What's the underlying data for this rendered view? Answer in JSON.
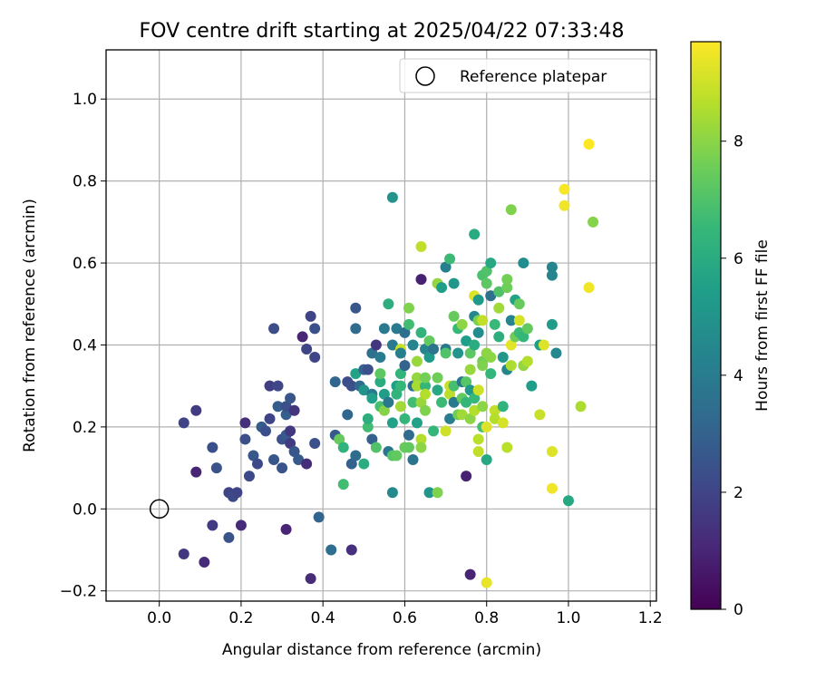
{
  "chart_data": {
    "type": "scatter",
    "title": "FOV centre drift starting at 2025/04/22 07:33:48",
    "xlabel": "Angular distance from reference (arcmin)",
    "ylabel": "Rotation from reference (arcmin)",
    "xlim": [
      -0.13,
      1.215
    ],
    "ylim": [
      -0.225,
      1.12
    ],
    "x_ticks": [
      "0.0",
      "0.2",
      "0.4",
      "0.6",
      "0.8",
      "1.0",
      "1.2"
    ],
    "y_ticks": [
      "−0.2",
      "0.0",
      "0.2",
      "0.4",
      "0.6",
      "0.8",
      "1.0"
    ],
    "grid": true,
    "legend_position": "top-right",
    "legend": {
      "label": "Reference platepar",
      "marker": "open-circle"
    },
    "reference_point": {
      "x": 0.0,
      "y": 0.0
    },
    "colorbar": {
      "label": "Hours from first FF file",
      "colormap": "viridis",
      "range": [
        0,
        9.7
      ],
      "ticks": [
        "0",
        "2",
        "4",
        "6",
        "8"
      ]
    },
    "points": [
      {
        "x": 0.06,
        "y": 0.21,
        "c": 2.0
      },
      {
        "x": 0.09,
        "y": 0.24,
        "c": 1.7
      },
      {
        "x": 0.09,
        "y": 0.09,
        "c": 1.0
      },
      {
        "x": 0.06,
        "y": -0.11,
        "c": 1.6
      },
      {
        "x": 0.11,
        "y": -0.13,
        "c": 1.2
      },
      {
        "x": 0.13,
        "y": -0.04,
        "c": 1.7
      },
      {
        "x": 0.13,
        "y": 0.15,
        "c": 2.4
      },
      {
        "x": 0.14,
        "y": 0.1,
        "c": 2.5
      },
      {
        "x": 0.17,
        "y": -0.07,
        "c": 2.5
      },
      {
        "x": 0.17,
        "y": 0.04,
        "c": 2.0
      },
      {
        "x": 0.18,
        "y": 0.03,
        "c": 2.2
      },
      {
        "x": 0.19,
        "y": 0.04,
        "c": 2.0
      },
      {
        "x": 0.2,
        "y": -0.04,
        "c": 1.2
      },
      {
        "x": 0.21,
        "y": 0.21,
        "c": 1.3
      },
      {
        "x": 0.21,
        "y": 0.17,
        "c": 2.4
      },
      {
        "x": 0.22,
        "y": 0.08,
        "c": 2.2
      },
      {
        "x": 0.23,
        "y": 0.13,
        "c": 2.6
      },
      {
        "x": 0.24,
        "y": 0.11,
        "c": 2.2
      },
      {
        "x": 0.25,
        "y": 0.2,
        "c": 2.8
      },
      {
        "x": 0.26,
        "y": 0.19,
        "c": 2.4
      },
      {
        "x": 0.27,
        "y": 0.22,
        "c": 2.0
      },
      {
        "x": 0.27,
        "y": 0.3,
        "c": 1.8
      },
      {
        "x": 0.28,
        "y": 0.12,
        "c": 2.6
      },
      {
        "x": 0.28,
        "y": 0.44,
        "c": 2.3
      },
      {
        "x": 0.29,
        "y": 0.3,
        "c": 2.1
      },
      {
        "x": 0.29,
        "y": 0.25,
        "c": 2.9
      },
      {
        "x": 0.3,
        "y": 0.17,
        "c": 2.5
      },
      {
        "x": 0.3,
        "y": 0.1,
        "c": 2.5
      },
      {
        "x": 0.31,
        "y": 0.18,
        "c": 2.7
      },
      {
        "x": 0.31,
        "y": 0.23,
        "c": 2.9
      },
      {
        "x": 0.31,
        "y": 0.25,
        "c": 2.4
      },
      {
        "x": 0.31,
        "y": -0.05,
        "c": 1.0
      },
      {
        "x": 0.32,
        "y": 0.19,
        "c": 1.6
      },
      {
        "x": 0.32,
        "y": 0.27,
        "c": 2.6
      },
      {
        "x": 0.32,
        "y": 0.16,
        "c": 1.7
      },
      {
        "x": 0.33,
        "y": 0.14,
        "c": 2.6
      },
      {
        "x": 0.33,
        "y": 0.24,
        "c": 1.5
      },
      {
        "x": 0.34,
        "y": 0.12,
        "c": 2.7
      },
      {
        "x": 0.35,
        "y": 0.42,
        "c": 1.0
      },
      {
        "x": 0.36,
        "y": 0.39,
        "c": 2.0
      },
      {
        "x": 0.36,
        "y": 0.11,
        "c": 1.2
      },
      {
        "x": 0.37,
        "y": 0.47,
        "c": 2.0
      },
      {
        "x": 0.37,
        "y": -0.17,
        "c": 1.2
      },
      {
        "x": 0.38,
        "y": 0.37,
        "c": 2.0
      },
      {
        "x": 0.38,
        "y": 0.44,
        "c": 2.4
      },
      {
        "x": 0.38,
        "y": 0.16,
        "c": 2.4
      },
      {
        "x": 0.39,
        "y": -0.02,
        "c": 3.1
      },
      {
        "x": 0.42,
        "y": -0.1,
        "c": 3.5
      },
      {
        "x": 0.43,
        "y": 0.31,
        "c": 3.2
      },
      {
        "x": 0.43,
        "y": 0.18,
        "c": 2.7
      },
      {
        "x": 0.44,
        "y": 0.17,
        "c": 7.4
      },
      {
        "x": 0.45,
        "y": 0.06,
        "c": 6.7
      },
      {
        "x": 0.45,
        "y": 0.15,
        "c": 6.3
      },
      {
        "x": 0.46,
        "y": 0.23,
        "c": 3.2
      },
      {
        "x": 0.46,
        "y": 0.31,
        "c": 2.3
      },
      {
        "x": 0.47,
        "y": 0.3,
        "c": 2.4
      },
      {
        "x": 0.47,
        "y": 0.11,
        "c": 3.0
      },
      {
        "x": 0.47,
        "y": -0.1,
        "c": 1.3
      },
      {
        "x": 0.48,
        "y": 0.49,
        "c": 2.6
      },
      {
        "x": 0.48,
        "y": 0.13,
        "c": 3.4
      },
      {
        "x": 0.48,
        "y": 0.33,
        "c": 5.6
      },
      {
        "x": 0.48,
        "y": 0.44,
        "c": 3.4
      },
      {
        "x": 0.49,
        "y": 0.3,
        "c": 3.3
      },
      {
        "x": 0.5,
        "y": 0.34,
        "c": 3.1
      },
      {
        "x": 0.5,
        "y": 0.29,
        "c": 5.0
      },
      {
        "x": 0.5,
        "y": 0.11,
        "c": 6.0
      },
      {
        "x": 0.51,
        "y": 0.34,
        "c": 2.4
      },
      {
        "x": 0.51,
        "y": 0.2,
        "c": 6.7
      },
      {
        "x": 0.51,
        "y": 0.22,
        "c": 6.1
      },
      {
        "x": 0.52,
        "y": 0.28,
        "c": 4.0
      },
      {
        "x": 0.52,
        "y": 0.27,
        "c": 5.5
      },
      {
        "x": 0.52,
        "y": 0.17,
        "c": 3.0
      },
      {
        "x": 0.52,
        "y": 0.38,
        "c": 3.6
      },
      {
        "x": 0.53,
        "y": 0.4,
        "c": 1.5
      },
      {
        "x": 0.53,
        "y": 0.15,
        "c": 7.0
      },
      {
        "x": 0.54,
        "y": 0.31,
        "c": 6.0
      },
      {
        "x": 0.54,
        "y": 0.37,
        "c": 4.0
      },
      {
        "x": 0.54,
        "y": 0.25,
        "c": 6.8
      },
      {
        "x": 0.54,
        "y": 0.33,
        "c": 7.2
      },
      {
        "x": 0.55,
        "y": 0.28,
        "c": 5.3
      },
      {
        "x": 0.55,
        "y": 0.24,
        "c": 7.9
      },
      {
        "x": 0.55,
        "y": 0.44,
        "c": 4.0
      },
      {
        "x": 0.56,
        "y": 0.5,
        "c": 6.1
      },
      {
        "x": 0.56,
        "y": 0.14,
        "c": 3.8
      },
      {
        "x": 0.56,
        "y": 0.26,
        "c": 3.9
      },
      {
        "x": 0.57,
        "y": 0.76,
        "c": 5.0
      },
      {
        "x": 0.57,
        "y": 0.4,
        "c": 4.0
      },
      {
        "x": 0.57,
        "y": 0.21,
        "c": 5.5
      },
      {
        "x": 0.57,
        "y": 0.04,
        "c": 4.6
      },
      {
        "x": 0.57,
        "y": 0.13,
        "c": 7.1
      },
      {
        "x": 0.58,
        "y": 0.44,
        "c": 4.0
      },
      {
        "x": 0.58,
        "y": 0.3,
        "c": 5.4
      },
      {
        "x": 0.58,
        "y": 0.28,
        "c": 6.3
      },
      {
        "x": 0.58,
        "y": 0.13,
        "c": 7.3
      },
      {
        "x": 0.59,
        "y": 0.39,
        "c": 8.9
      },
      {
        "x": 0.59,
        "y": 0.33,
        "c": 6.3
      },
      {
        "x": 0.59,
        "y": 0.25,
        "c": 8.3
      },
      {
        "x": 0.59,
        "y": 0.38,
        "c": 4.2
      },
      {
        "x": 0.59,
        "y": 0.3,
        "c": 6.4
      },
      {
        "x": 0.6,
        "y": 0.35,
        "c": 3.1
      },
      {
        "x": 0.6,
        "y": 0.22,
        "c": 6.4
      },
      {
        "x": 0.6,
        "y": 0.43,
        "c": 3.5
      },
      {
        "x": 0.6,
        "y": 0.15,
        "c": 7.4
      },
      {
        "x": 0.61,
        "y": 0.49,
        "c": 7.8
      },
      {
        "x": 0.61,
        "y": 0.45,
        "c": 6.7
      },
      {
        "x": 0.61,
        "y": 0.18,
        "c": 3.4
      },
      {
        "x": 0.61,
        "y": 0.15,
        "c": 7.3
      },
      {
        "x": 0.62,
        "y": 0.26,
        "c": 6.7
      },
      {
        "x": 0.62,
        "y": 0.3,
        "c": 3.6
      },
      {
        "x": 0.62,
        "y": 0.12,
        "c": 3.7
      },
      {
        "x": 0.62,
        "y": 0.4,
        "c": 4.4
      },
      {
        "x": 0.63,
        "y": 0.32,
        "c": 8.1
      },
      {
        "x": 0.63,
        "y": 0.3,
        "c": 8.4
      },
      {
        "x": 0.63,
        "y": 0.36,
        "c": 8.2
      },
      {
        "x": 0.63,
        "y": 0.21,
        "c": 5.5
      },
      {
        "x": 0.64,
        "y": 0.26,
        "c": 8.2
      },
      {
        "x": 0.64,
        "y": 0.17,
        "c": 8.6
      },
      {
        "x": 0.64,
        "y": 0.43,
        "c": 6.3
      },
      {
        "x": 0.64,
        "y": 0.64,
        "c": 8.8
      },
      {
        "x": 0.64,
        "y": 0.56,
        "c": 0.9
      },
      {
        "x": 0.64,
        "y": 0.15,
        "c": 8.0
      },
      {
        "x": 0.65,
        "y": 0.39,
        "c": 4.4
      },
      {
        "x": 0.65,
        "y": 0.3,
        "c": 6.4
      },
      {
        "x": 0.65,
        "y": 0.24,
        "c": 7.8
      },
      {
        "x": 0.65,
        "y": 0.32,
        "c": 7.6
      },
      {
        "x": 0.65,
        "y": 0.28,
        "c": 8.6
      },
      {
        "x": 0.66,
        "y": 0.37,
        "c": 5.2
      },
      {
        "x": 0.66,
        "y": 0.41,
        "c": 7.3
      },
      {
        "x": 0.66,
        "y": 0.04,
        "c": 5.0
      },
      {
        "x": 0.67,
        "y": 0.19,
        "c": 6.4
      },
      {
        "x": 0.67,
        "y": 0.39,
        "c": 3.7
      },
      {
        "x": 0.68,
        "y": 0.55,
        "c": 8.1
      },
      {
        "x": 0.68,
        "y": 0.04,
        "c": 7.8
      },
      {
        "x": 0.68,
        "y": 0.29,
        "c": 5.8
      },
      {
        "x": 0.68,
        "y": 0.32,
        "c": 7.5
      },
      {
        "x": 0.69,
        "y": 0.26,
        "c": 6.6
      },
      {
        "x": 0.69,
        "y": 0.54,
        "c": 5.4
      },
      {
        "x": 0.7,
        "y": 0.39,
        "c": 3.9
      },
      {
        "x": 0.7,
        "y": 0.19,
        "c": 9.0
      },
      {
        "x": 0.7,
        "y": 0.59,
        "c": 4.2
      },
      {
        "x": 0.7,
        "y": 0.38,
        "c": 7.0
      },
      {
        "x": 0.71,
        "y": 0.61,
        "c": 6.6
      },
      {
        "x": 0.71,
        "y": 0.22,
        "c": 4.1
      },
      {
        "x": 0.71,
        "y": 0.28,
        "c": 8.7
      },
      {
        "x": 0.71,
        "y": 0.3,
        "c": 8.9
      },
      {
        "x": 0.72,
        "y": 0.26,
        "c": 4.0
      },
      {
        "x": 0.72,
        "y": 0.55,
        "c": 5.1
      },
      {
        "x": 0.72,
        "y": 0.3,
        "c": 6.8
      },
      {
        "x": 0.72,
        "y": 0.47,
        "c": 7.4
      },
      {
        "x": 0.73,
        "y": 0.23,
        "c": 7.5
      },
      {
        "x": 0.73,
        "y": 0.38,
        "c": 5.0
      },
      {
        "x": 0.73,
        "y": 0.44,
        "c": 6.5
      },
      {
        "x": 0.74,
        "y": 0.27,
        "c": 7.3
      },
      {
        "x": 0.74,
        "y": 0.45,
        "c": 8.0
      },
      {
        "x": 0.74,
        "y": 0.31,
        "c": 3.9
      },
      {
        "x": 0.74,
        "y": 0.23,
        "c": 8.3
      },
      {
        "x": 0.75,
        "y": 0.31,
        "c": 7.1
      },
      {
        "x": 0.75,
        "y": 0.41,
        "c": 5.4
      },
      {
        "x": 0.75,
        "y": 0.08,
        "c": 0.9
      },
      {
        "x": 0.75,
        "y": 0.26,
        "c": 6.4
      },
      {
        "x": 0.76,
        "y": 0.29,
        "c": 5.2
      },
      {
        "x": 0.76,
        "y": 0.22,
        "c": 8.0
      },
      {
        "x": 0.76,
        "y": 0.34,
        "c": 8.2
      },
      {
        "x": 0.76,
        "y": 0.38,
        "c": 7.2
      },
      {
        "x": 0.76,
        "y": -0.16,
        "c": 1.0
      },
      {
        "x": 0.77,
        "y": 0.67,
        "c": 5.9
      },
      {
        "x": 0.77,
        "y": 0.52,
        "c": 9.2
      },
      {
        "x": 0.77,
        "y": 0.47,
        "c": 4.5
      },
      {
        "x": 0.77,
        "y": 0.24,
        "c": 8.6
      },
      {
        "x": 0.77,
        "y": 0.4,
        "c": 6.0
      },
      {
        "x": 0.77,
        "y": 0.27,
        "c": 6.5
      },
      {
        "x": 0.78,
        "y": 0.46,
        "c": 7.7
      },
      {
        "x": 0.78,
        "y": 0.17,
        "c": 8.7
      },
      {
        "x": 0.78,
        "y": 0.14,
        "c": 8.8
      },
      {
        "x": 0.78,
        "y": 0.29,
        "c": 9.0
      },
      {
        "x": 0.78,
        "y": 0.51,
        "c": 5.2
      },
      {
        "x": 0.78,
        "y": 0.43,
        "c": 4.7
      },
      {
        "x": 0.79,
        "y": 0.25,
        "c": 8.0
      },
      {
        "x": 0.79,
        "y": 0.57,
        "c": 6.9
      },
      {
        "x": 0.79,
        "y": 0.36,
        "c": 7.6
      },
      {
        "x": 0.79,
        "y": 0.46,
        "c": 8.8
      },
      {
        "x": 0.79,
        "y": 0.2,
        "c": 6.8
      },
      {
        "x": 0.79,
        "y": 0.35,
        "c": 7.8
      },
      {
        "x": 0.8,
        "y": -0.18,
        "c": 9.4
      },
      {
        "x": 0.8,
        "y": 0.12,
        "c": 5.8
      },
      {
        "x": 0.8,
        "y": 0.58,
        "c": 7.0
      },
      {
        "x": 0.8,
        "y": 0.55,
        "c": 7.2
      },
      {
        "x": 0.8,
        "y": 0.2,
        "c": 9.2
      },
      {
        "x": 0.8,
        "y": 0.38,
        "c": 8.0
      },
      {
        "x": 0.81,
        "y": 0.6,
        "c": 5.8
      },
      {
        "x": 0.81,
        "y": 0.33,
        "c": 6.4
      },
      {
        "x": 0.81,
        "y": 0.37,
        "c": 8.0
      },
      {
        "x": 0.81,
        "y": 0.52,
        "c": 3.6
      },
      {
        "x": 0.82,
        "y": 0.45,
        "c": 6.5
      },
      {
        "x": 0.82,
        "y": 0.24,
        "c": 8.8
      },
      {
        "x": 0.82,
        "y": 0.22,
        "c": 8.6
      },
      {
        "x": 0.83,
        "y": 0.49,
        "c": 8.3
      },
      {
        "x": 0.83,
        "y": 0.53,
        "c": 7.0
      },
      {
        "x": 0.83,
        "y": 0.42,
        "c": 6.1
      },
      {
        "x": 0.84,
        "y": 0.25,
        "c": 6.3
      },
      {
        "x": 0.84,
        "y": 0.37,
        "c": 5.1
      },
      {
        "x": 0.84,
        "y": 0.21,
        "c": 9.1
      },
      {
        "x": 0.85,
        "y": 0.54,
        "c": 7.5
      },
      {
        "x": 0.85,
        "y": 0.34,
        "c": 4.4
      },
      {
        "x": 0.85,
        "y": 0.15,
        "c": 8.7
      },
      {
        "x": 0.85,
        "y": 0.56,
        "c": 7.6
      },
      {
        "x": 0.86,
        "y": 0.46,
        "c": 4.4
      },
      {
        "x": 0.86,
        "y": 0.73,
        "c": 7.8
      },
      {
        "x": 0.86,
        "y": 0.4,
        "c": 9.3
      },
      {
        "x": 0.86,
        "y": 0.35,
        "c": 8.5
      },
      {
        "x": 0.87,
        "y": 0.51,
        "c": 5.6
      },
      {
        "x": 0.87,
        "y": 0.42,
        "c": 7.5
      },
      {
        "x": 0.88,
        "y": 0.5,
        "c": 7.4
      },
      {
        "x": 0.88,
        "y": 0.46,
        "c": 9.1
      },
      {
        "x": 0.88,
        "y": 0.43,
        "c": 6.6
      },
      {
        "x": 0.89,
        "y": 0.6,
        "c": 4.7
      },
      {
        "x": 0.89,
        "y": 0.35,
        "c": 8.1
      },
      {
        "x": 0.89,
        "y": 0.42,
        "c": 6.4
      },
      {
        "x": 0.9,
        "y": 0.36,
        "c": 8.6
      },
      {
        "x": 0.9,
        "y": 0.44,
        "c": 7.3
      },
      {
        "x": 0.91,
        "y": 0.3,
        "c": 5.4
      },
      {
        "x": 0.93,
        "y": 0.23,
        "c": 8.9
      },
      {
        "x": 0.93,
        "y": 0.4,
        "c": 5.4
      },
      {
        "x": 0.94,
        "y": 0.4,
        "c": 9.2
      },
      {
        "x": 0.96,
        "y": 0.59,
        "c": 4.4
      },
      {
        "x": 0.96,
        "y": 0.05,
        "c": 9.5
      },
      {
        "x": 0.96,
        "y": 0.57,
        "c": 4.4
      },
      {
        "x": 0.96,
        "y": 0.45,
        "c": 5.3
      },
      {
        "x": 0.96,
        "y": 0.14,
        "c": 9.2
      },
      {
        "x": 0.97,
        "y": 0.38,
        "c": 4.5
      },
      {
        "x": 0.99,
        "y": 0.74,
        "c": 9.5
      },
      {
        "x": 0.99,
        "y": 0.78,
        "c": 9.6
      },
      {
        "x": 1.0,
        "y": 0.02,
        "c": 5.8
      },
      {
        "x": 1.03,
        "y": 0.25,
        "c": 8.5
      },
      {
        "x": 1.05,
        "y": 0.89,
        "c": 9.7
      },
      {
        "x": 1.05,
        "y": 0.54,
        "c": 9.5
      },
      {
        "x": 1.06,
        "y": 0.7,
        "c": 7.9
      }
    ]
  }
}
